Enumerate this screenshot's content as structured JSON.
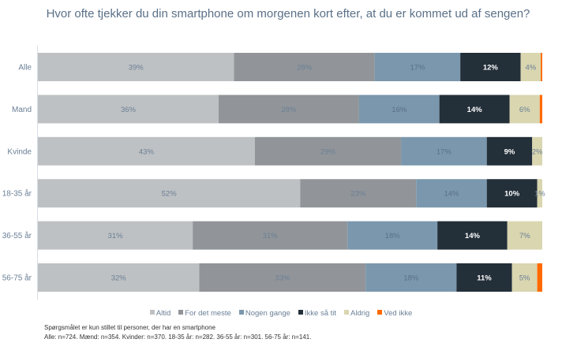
{
  "chart_data": {
    "type": "bar",
    "orientation": "horizontal",
    "stacked": "percent",
    "title": "Hvor ofte tjekker du din smartphone om morgenen kort efter, at du er kommet ud af sengen?",
    "xlabel": "",
    "ylabel": "",
    "categories": [
      "Alle",
      "Mand",
      "Kvinde",
      "18-35 år",
      "36-55 år",
      "56-75 år"
    ],
    "series": [
      {
        "name": "Altid",
        "color": "#bec1c3",
        "label_color": "#6a7f96",
        "values": [
          39,
          36,
          43,
          52,
          31,
          32
        ]
      },
      {
        "name": "For det meste",
        "color": "#919599",
        "label_color": "#6a7f96",
        "values": [
          28,
          28,
          29,
          23,
          31,
          33
        ]
      },
      {
        "name": "Nogen gange",
        "color": "#7a97ad",
        "label_color": "#5a7088",
        "values": [
          17,
          16,
          17,
          14,
          18,
          18
        ]
      },
      {
        "name": "Ikke så tit",
        "color": "#232f39",
        "label_color": "#ffffff",
        "values": [
          12,
          14,
          9,
          10,
          14,
          11
        ]
      },
      {
        "name": "Aldrig",
        "color": "#d9d6b0",
        "label_color": "#6a7f96",
        "values": [
          4,
          6,
          2,
          1,
          7,
          5
        ]
      },
      {
        "name": "Ved ikke",
        "color": "#ff6a00",
        "label_color": "#6a7f96",
        "values": [
          0.3,
          0.5,
          0,
          0,
          0,
          1
        ]
      }
    ],
    "value_labels": [
      [
        "39%",
        "28%",
        "17%",
        "12%",
        "4%",
        ""
      ],
      [
        "36%",
        "28%",
        "16%",
        "14%",
        "6%",
        ""
      ],
      [
        "43%",
        "29%",
        "17%",
        "9%",
        "2%",
        ""
      ],
      [
        "52%",
        "23%",
        "14%",
        "10%",
        "1%",
        ""
      ],
      [
        "31%",
        "31%",
        "18%",
        "14%",
        "7%",
        ""
      ],
      [
        "32%",
        "33%",
        "18%",
        "11%",
        "5%",
        ""
      ]
    ],
    "xlim": [
      0,
      100
    ],
    "grid": false,
    "legend_position": "bottom"
  },
  "notes": {
    "line1": "Spørgsmålet er kun stillet til personer, der har en smartphone",
    "line2": "Alle: n=724. Mænd: n=354. Kvinder: n=370. 18-35 år: n=282. 36-55 år: n=301. 56-75 år: n=141."
  }
}
